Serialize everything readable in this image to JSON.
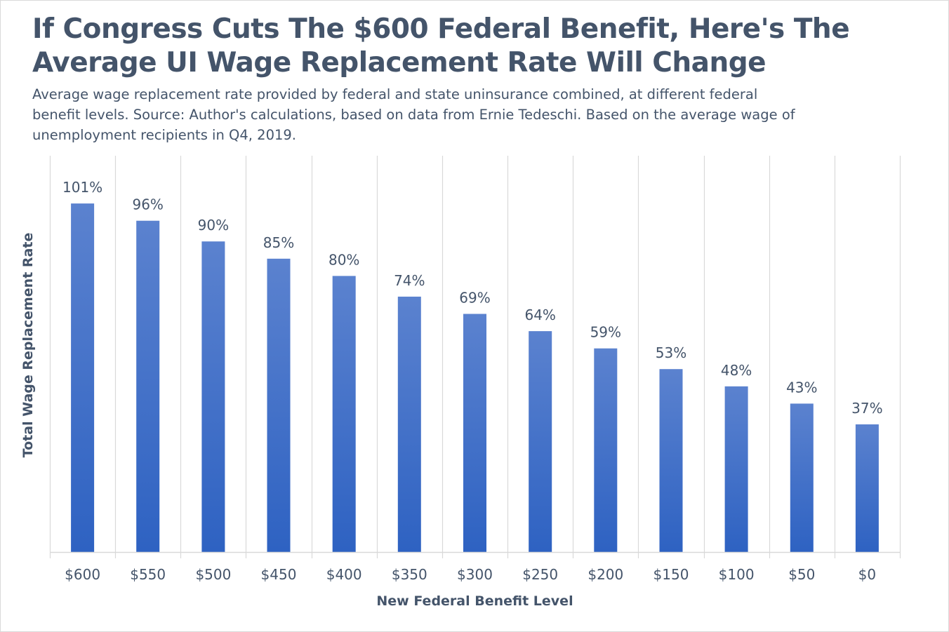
{
  "title": "If Congress Cuts The $600 Federal Benefit, Here's The Average UI Wage Replacement Rate Will Change",
  "subtitle": "Average wage replacement rate provided by federal and state uninsurance combined, at different federal benefit levels. Source: Author's calculations, based on data from Ernie Tedeschi. Based on the average wage of unemployment recipients in Q4, 2019.",
  "colors": {
    "bar_top": "#5b82cf",
    "bar_bottom": "#2e62c2",
    "text": "#44546a",
    "gridline": "#d9d9d9",
    "axis": "#d9d9d9"
  },
  "chart_data": {
    "type": "bar",
    "title": "If Congress Cuts The $600 Federal Benefit, Here's The Average UI Wage Replacement Rate Will Change",
    "xlabel": "New Federal Benefit Level",
    "ylabel": "Total Wage Replacement Rate",
    "categories": [
      "$600",
      "$550",
      "$500",
      "$450",
      "$400",
      "$350",
      "$300",
      "$250",
      "$200",
      "$150",
      "$100",
      "$50",
      "$0"
    ],
    "values": [
      101,
      96,
      90,
      85,
      80,
      74,
      69,
      64,
      59,
      53,
      48,
      43,
      37
    ],
    "data_labels": [
      "101%",
      "96%",
      "90%",
      "85%",
      "80%",
      "74%",
      "69%",
      "64%",
      "59%",
      "53%",
      "48%",
      "43%",
      "37%"
    ],
    "ylim": [
      0,
      112
    ],
    "grid": "vertical",
    "y_axis_shown": false
  }
}
